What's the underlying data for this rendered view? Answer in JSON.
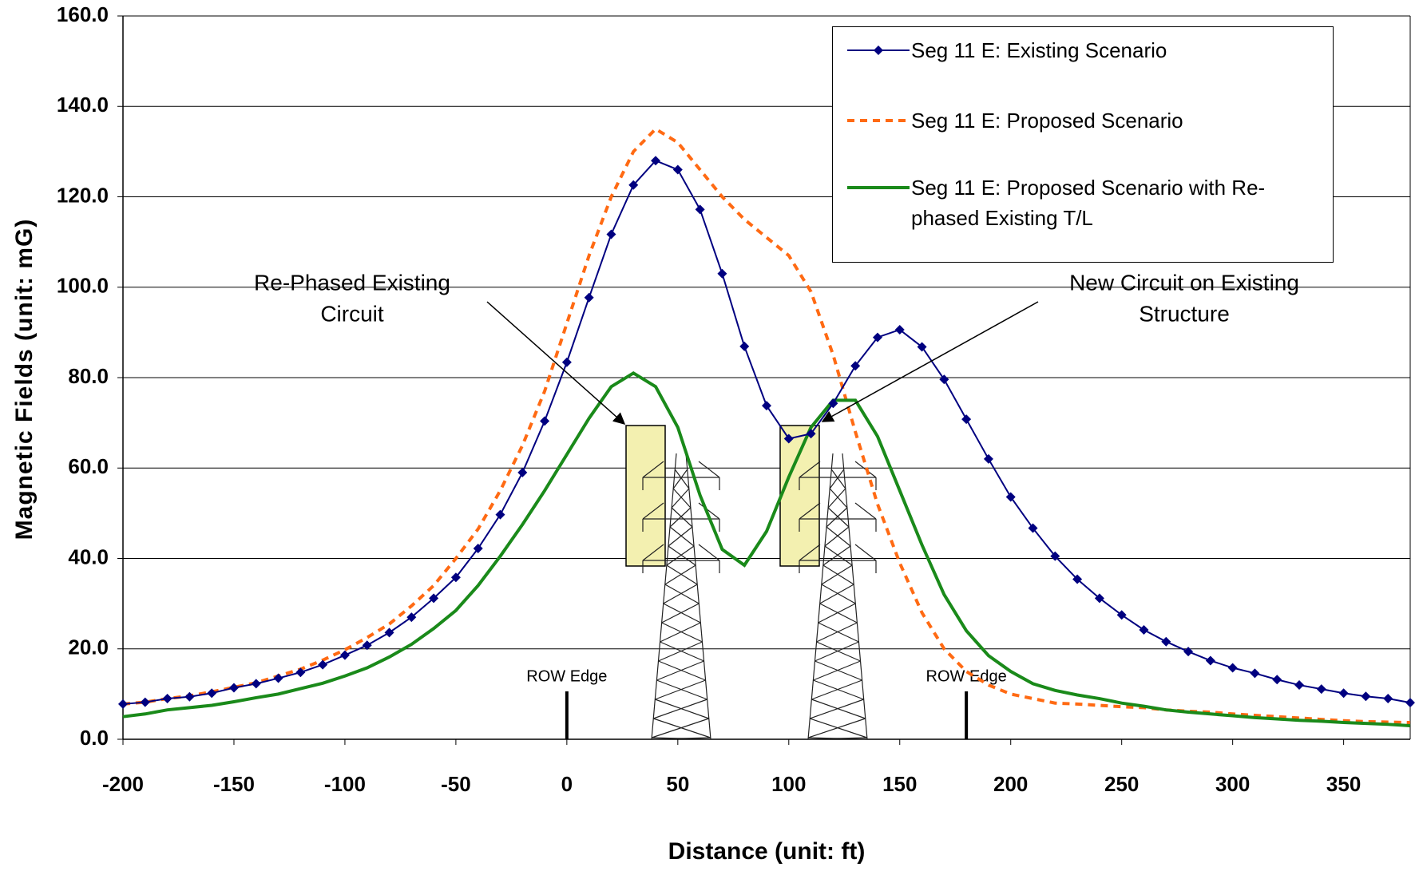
{
  "chart_data": {
    "type": "line",
    "y_label": "Magnetic Fields (unit: mG)",
    "x_label": "Distance (unit: ft)",
    "x": [
      -200,
      -190,
      -180,
      -170,
      -160,
      -150,
      -140,
      -130,
      -120,
      -110,
      -100,
      -90,
      -80,
      -70,
      -60,
      -50,
      -40,
      -30,
      -20,
      -10,
      0,
      10,
      20,
      30,
      40,
      50,
      60,
      70,
      80,
      90,
      100,
      110,
      120,
      130,
      140,
      150,
      160,
      170,
      180,
      190,
      200,
      210,
      220,
      230,
      240,
      250,
      260,
      270,
      280,
      290,
      300,
      310,
      320,
      330,
      340,
      350,
      360,
      370,
      380
    ],
    "series": [
      {
        "name": "Seg 11 E: Existing Scenario",
        "color": "#000080",
        "style": "solid-markers",
        "values": [
          7.8,
          8.2,
          9,
          9.4,
          10.2,
          11.4,
          12.3,
          13.5,
          14.8,
          16.5,
          18.6,
          20.8,
          23.6,
          27,
          31.2,
          35.8,
          42.2,
          49.7,
          59,
          70.4,
          83.4,
          97.7,
          111.7,
          122.6,
          128,
          126,
          117.2,
          103,
          86.9,
          73.8,
          66.5,
          67.6,
          74.3,
          82.6,
          88.9,
          90.6,
          86.8,
          79.6,
          70.8,
          62,
          53.6,
          46.7,
          40.5,
          35.4,
          31.2,
          27.5,
          24.2,
          21.6,
          19.4,
          17.4,
          15.8,
          14.6,
          13.2,
          12,
          11.1,
          10.2,
          9.5,
          9,
          8.1
        ]
      },
      {
        "name": "Seg 11 E: Proposed Scenario",
        "color": "#ff6a13",
        "style": "dashed",
        "values": [
          7.8,
          8.2,
          9,
          9.6,
          10.5,
          11.5,
          12.5,
          14,
          15.5,
          17.5,
          19.8,
          22.5,
          25.5,
          29.5,
          34,
          40,
          46.5,
          55,
          65,
          77,
          92,
          107,
          120,
          130,
          135,
          132,
          126,
          120,
          115,
          111,
          107,
          99,
          85,
          68,
          52,
          39,
          28,
          20,
          15,
          12,
          10,
          9,
          8,
          7.8,
          7.5,
          7.2,
          7,
          6.5,
          6.2,
          6,
          5.6,
          5.3,
          5,
          4.7,
          4.4,
          4.1,
          3.9,
          3.8,
          3.7
        ]
      },
      {
        "name": "Seg 11 E: Proposed Scenario with Re-phased Existing T/L",
        "color": "#1a8a1a",
        "style": "solid",
        "values": [
          5,
          5.6,
          6.5,
          7,
          7.5,
          8.3,
          9.2,
          10,
          11.2,
          12.4,
          14,
          15.8,
          18.2,
          21,
          24.5,
          28.5,
          34,
          40.5,
          47.5,
          55,
          63,
          71,
          78,
          81,
          78,
          69,
          54,
          42,
          38.5,
          46,
          58,
          69,
          75,
          75,
          67,
          55,
          43,
          32,
          24,
          18.5,
          15,
          12.3,
          10.8,
          9.8,
          9,
          8,
          7.3,
          6.5,
          6,
          5.6,
          5.2,
          4.8,
          4.5,
          4.2,
          4,
          3.7,
          3.5,
          3.3,
          3
        ]
      }
    ],
    "xlim": [
      -200,
      380
    ],
    "xticks": [
      -200,
      -150,
      -100,
      -50,
      0,
      50,
      100,
      150,
      200,
      250,
      300,
      350
    ],
    "ylim": [
      0,
      160
    ],
    "yticks": [
      {
        "value": 0,
        "label": "0.0"
      },
      {
        "value": 20,
        "label": "20.0"
      },
      {
        "value": 40,
        "label": "40.0"
      },
      {
        "value": 60,
        "label": "60.0"
      },
      {
        "value": 80,
        "label": "80.0"
      },
      {
        "value": 100,
        "label": "100.0"
      },
      {
        "value": 120,
        "label": "120.0"
      },
      {
        "value": 140,
        "label": "140.0"
      },
      {
        "value": 160,
        "label": "160.0"
      }
    ],
    "grid": true,
    "annotations": [
      {
        "lines": [
          "Re-Phased Existing",
          "Circuit"
        ]
      },
      {
        "lines": [
          "New Circuit on Existing",
          "Structure"
        ]
      }
    ],
    "row_edges": [
      {
        "x": 0,
        "label": "ROW Edge"
      },
      {
        "x": 180,
        "label": "ROW Edge"
      }
    ]
  }
}
